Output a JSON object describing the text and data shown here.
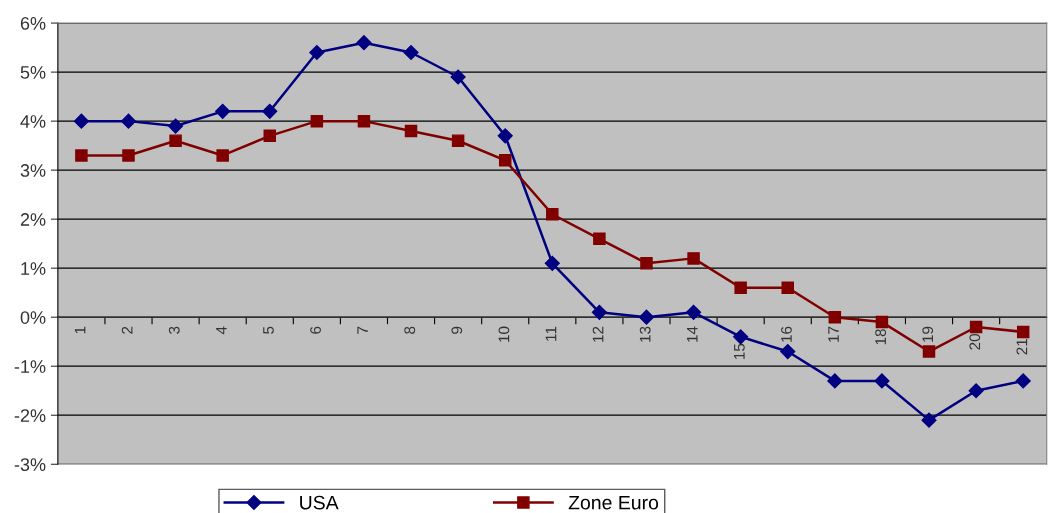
{
  "chart_data": {
    "type": "line",
    "categories": [
      "1",
      "2",
      "3",
      "4",
      "5",
      "6",
      "7",
      "8",
      "9",
      "10",
      "11",
      "12",
      "13",
      "14",
      "15",
      "16",
      "17",
      "18",
      "19",
      "20",
      "21"
    ],
    "series": [
      {
        "name": "USA",
        "color": "#000080",
        "marker": "diamond",
        "values": [
          4.0,
          4.0,
          3.9,
          4.2,
          4.2,
          5.4,
          5.6,
          5.4,
          4.9,
          3.7,
          1.1,
          0.1,
          0.0,
          0.1,
          -0.4,
          -0.7,
          -1.3,
          -1.3,
          -2.1,
          -1.5,
          -1.3
        ]
      },
      {
        "name": "Zone Euro",
        "color": "#800000",
        "marker": "square",
        "values": [
          3.3,
          3.3,
          3.6,
          3.3,
          3.7,
          4.0,
          4.0,
          3.8,
          3.6,
          3.2,
          2.1,
          1.6,
          1.1,
          1.2,
          0.6,
          0.6,
          0.0,
          -0.1,
          -0.7,
          -0.2,
          -0.3
        ]
      }
    ],
    "ylim": [
      -3,
      6
    ],
    "yticks": [
      {
        "value": -3,
        "label": "-3%"
      },
      {
        "value": -2,
        "label": "-2%"
      },
      {
        "value": -1,
        "label": "-1%"
      },
      {
        "value": 0,
        "label": "0%"
      },
      {
        "value": 1,
        "label": "1%"
      },
      {
        "value": 2,
        "label": "2%"
      },
      {
        "value": 3,
        "label": "3%"
      },
      {
        "value": 4,
        "label": "4%"
      },
      {
        "value": 5,
        "label": "5%"
      },
      {
        "value": 6,
        "label": "6%"
      }
    ],
    "grid": "y",
    "legend": "bottom",
    "line_style": "solid"
  }
}
